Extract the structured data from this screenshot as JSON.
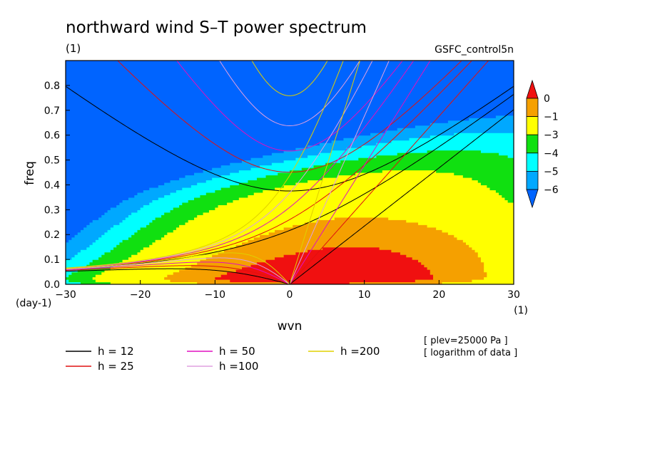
{
  "chart_data": {
    "type": "heatmap",
    "title": "northward wind S–T power spectrum",
    "x_unit": "(1)",
    "y_unit_top": "(1)",
    "y_unit_bottom": "(day-1)",
    "run_label": "GSFC_control5n",
    "xlabel": "wvn",
    "ylabel": "freq",
    "xlim": [
      -30,
      30
    ],
    "ylim": [
      0,
      0.9
    ],
    "xticks": [
      -30,
      -20,
      -10,
      0,
      10,
      20,
      30
    ],
    "yticks": [
      0.0,
      0.1,
      0.2,
      0.3,
      0.4,
      0.5,
      0.6,
      0.7,
      0.8
    ],
    "notes": [
      "[ plev=25000 Pa ]",
      "[ logarithm of data ]"
    ],
    "colorbar": {
      "tick_labels": [
        "0",
        "−1",
        "−3",
        "−4",
        "−5",
        "−6"
      ],
      "colors": [
        "#f01010",
        "#f5a000",
        "#ffff00",
        "#10e010",
        "#00ffff",
        "#00a8ff",
        "#0064ff"
      ]
    },
    "contour_levels": [
      {
        "lo": null,
        "color": "#0064ff"
      },
      {
        "lo": -6,
        "color": "#00a8ff"
      },
      {
        "lo": -5,
        "color": "#00ffff"
      },
      {
        "lo": -4,
        "color": "#10e010"
      },
      {
        "lo": -3,
        "color": "#ffff00"
      },
      {
        "lo": -1,
        "color": "#f5a000"
      },
      {
        "lo": 0,
        "color": "#f01010"
      }
    ],
    "dispersion_curves": [
      {
        "h": 12,
        "label": "h = 12",
        "color": "#000000"
      },
      {
        "h": 25,
        "label": "h = 25",
        "color": "#e01010"
      },
      {
        "h": 50,
        "label": "h = 50",
        "color": "#e010c0"
      },
      {
        "h": 100,
        "label": "h =100",
        "color": "#e0a0e0"
      },
      {
        "h": 200,
        "label": "h =200",
        "color": "#e0d000"
      }
    ]
  }
}
